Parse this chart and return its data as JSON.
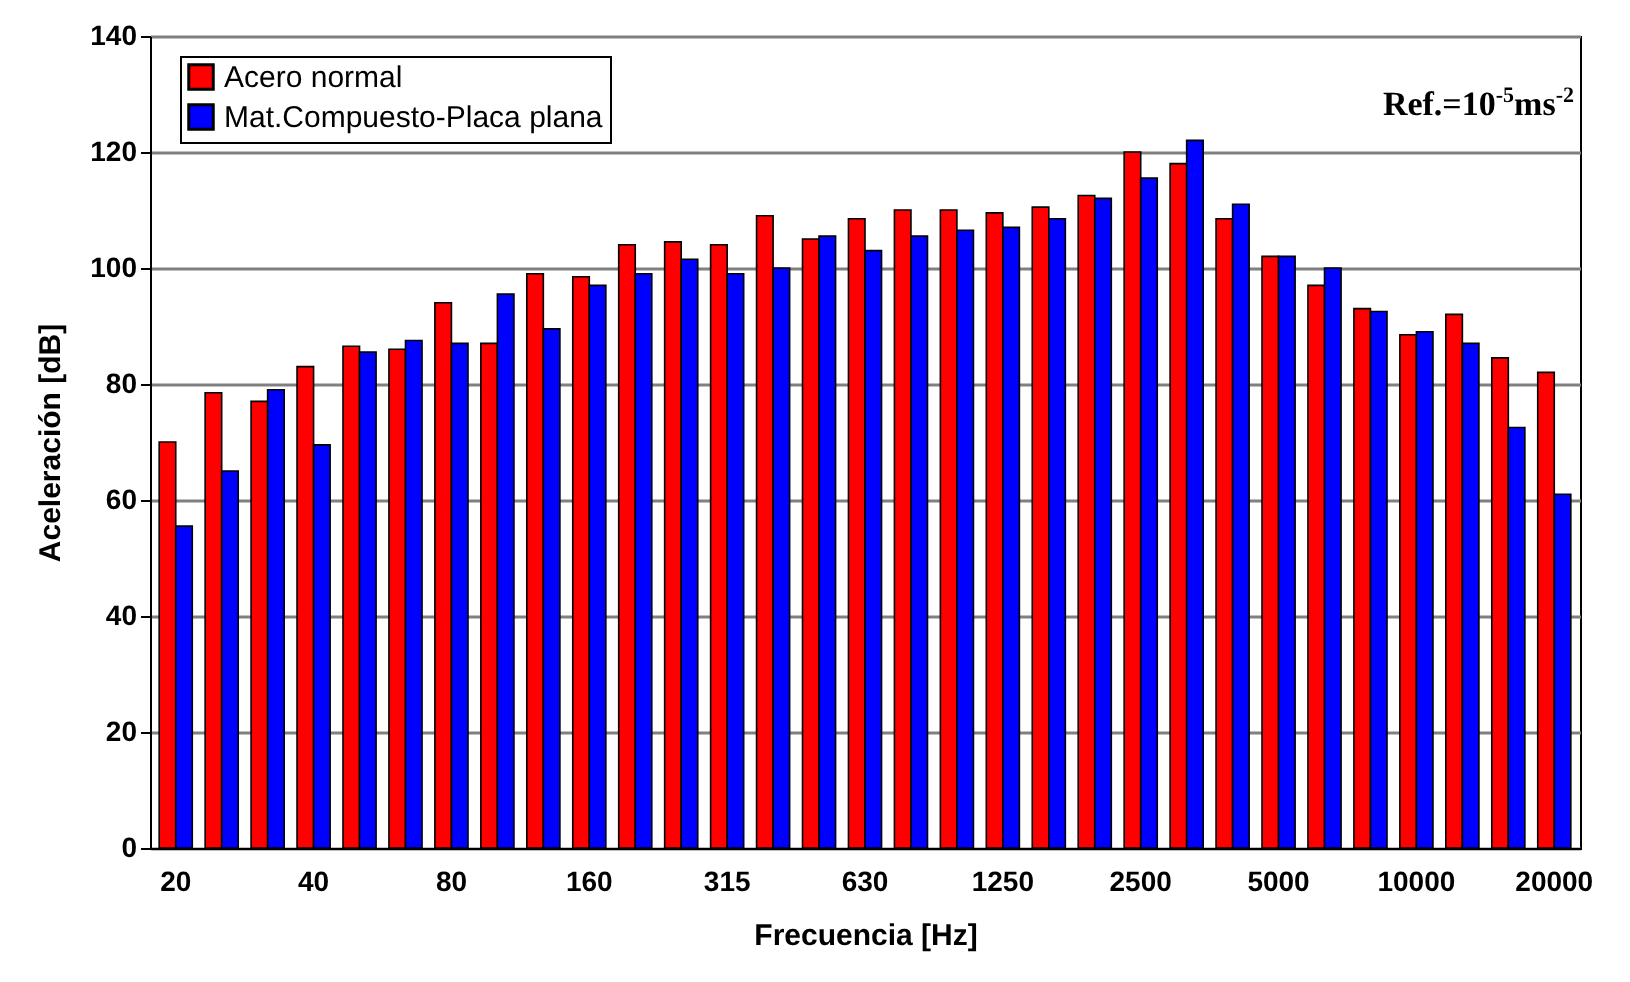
{
  "chart_data": {
    "type": "bar",
    "xlabel": "Frecuencia [Hz]",
    "ylabel": "Aceleración [dB]",
    "categories": [
      "20",
      null,
      null,
      "40",
      null,
      null,
      "80",
      null,
      null,
      "160",
      null,
      null,
      "315",
      null,
      null,
      "630",
      null,
      null,
      "1250",
      null,
      null,
      "2500",
      null,
      null,
      "5000",
      null,
      null,
      "10000",
      null,
      null,
      "20000"
    ],
    "series": [
      {
        "name": "Acero normal",
        "color": "#ff0000",
        "values": [
          70,
          78.5,
          77,
          83,
          86.5,
          86,
          94,
          87,
          99,
          98.5,
          104,
          104.5,
          104,
          109,
          105,
          108.5,
          110,
          110,
          109.5,
          110.5,
          112.5,
          120,
          118,
          108.5,
          102,
          97,
          93,
          88.5,
          92,
          84.5,
          82
        ]
      },
      {
        "name": "Mat.Compuesto-Placa plana",
        "color": "#0000ff",
        "values": [
          55.5,
          65,
          79,
          69.5,
          85.5,
          87.5,
          87,
          95.5,
          89.5,
          97,
          99,
          101.5,
          99,
          100,
          105.5,
          103,
          105.5,
          106.5,
          107,
          108.5,
          112,
          115.5,
          122,
          111,
          102,
          100,
          92.5,
          89,
          87,
          72.5,
          61
        ]
      }
    ],
    "ylim": [
      0,
      140
    ],
    "yticks": [
      0,
      20,
      40,
      60,
      80,
      100,
      120,
      140
    ],
    "grid": "y",
    "legend": "top left",
    "annotations": [
      "Ref.=10$^{-5}$ms$^{-2}$"
    ]
  }
}
